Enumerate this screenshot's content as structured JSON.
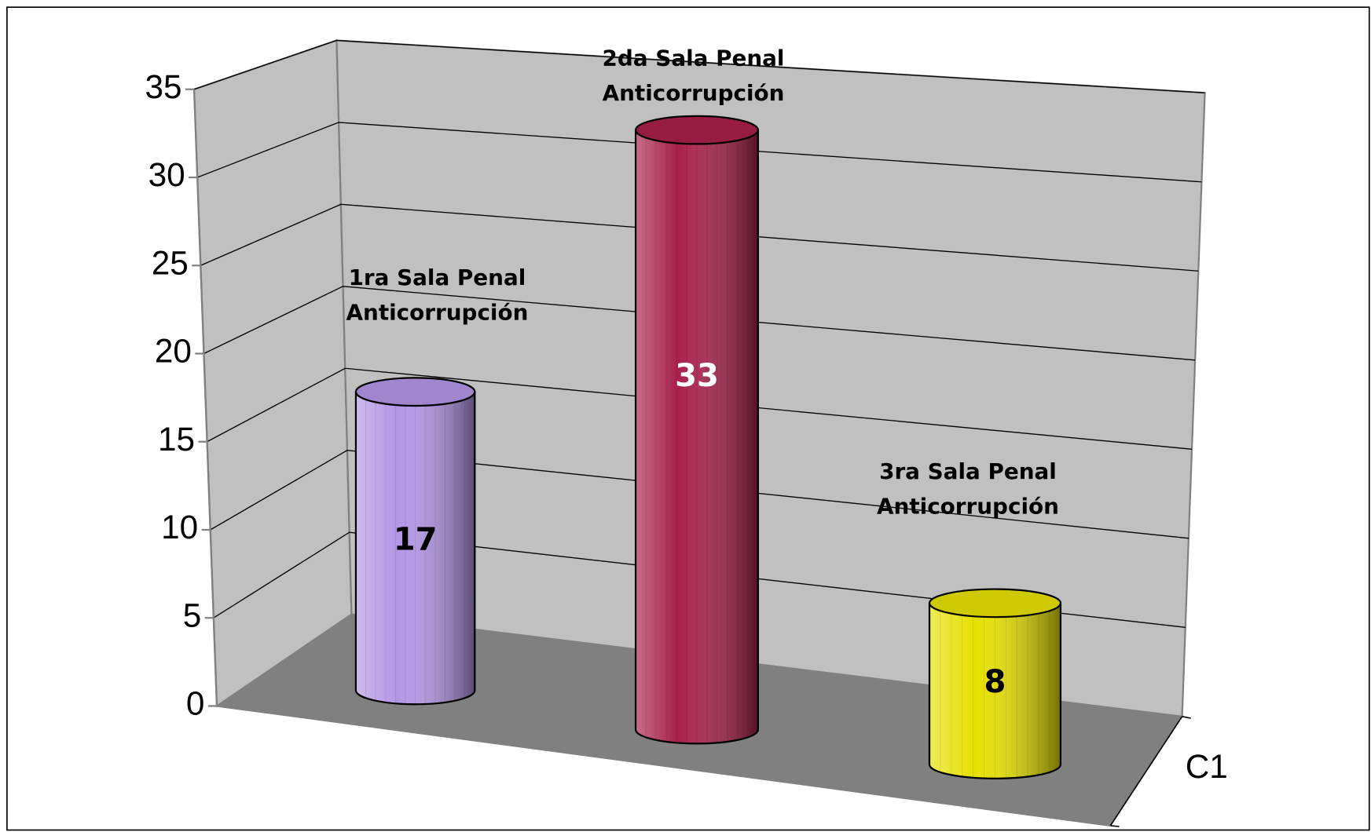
{
  "chart_data": {
    "type": "bar",
    "categories": [
      "C1"
    ],
    "series": [
      {
        "name": "1ra Sala Penal Anticorrupción",
        "color": "#b496e6",
        "values": [
          17
        ]
      },
      {
        "name": "2da Sala Penal Anticorrupción",
        "color": "#a8204a",
        "values": [
          33
        ]
      },
      {
        "name": "3ra Sala Penal Anticorrupción",
        "color": "#e6e000",
        "values": [
          8
        ]
      }
    ],
    "ylim": [
      0,
      35
    ],
    "yticks": [
      0,
      5,
      10,
      15,
      20,
      25,
      30,
      35
    ],
    "grid": true
  }
}
